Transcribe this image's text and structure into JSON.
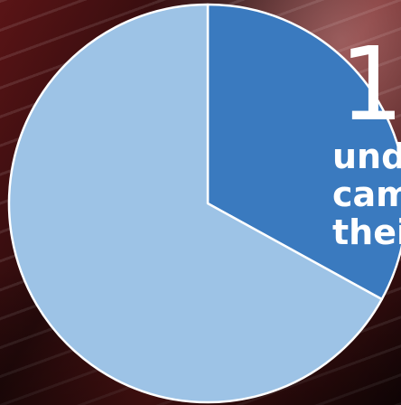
{
  "chart_data": {
    "type": "pie",
    "slices": [
      {
        "value": 33,
        "color": "#3a7abf"
      },
      {
        "value": 67,
        "color": "#9dc3e6"
      }
    ],
    "start_angle_deg": 0,
    "direction": "clockwise",
    "stroke_color": "#ffffff"
  },
  "overlay": {
    "number": "1",
    "lines": [
      "und",
      "cam",
      "thei"
    ]
  }
}
